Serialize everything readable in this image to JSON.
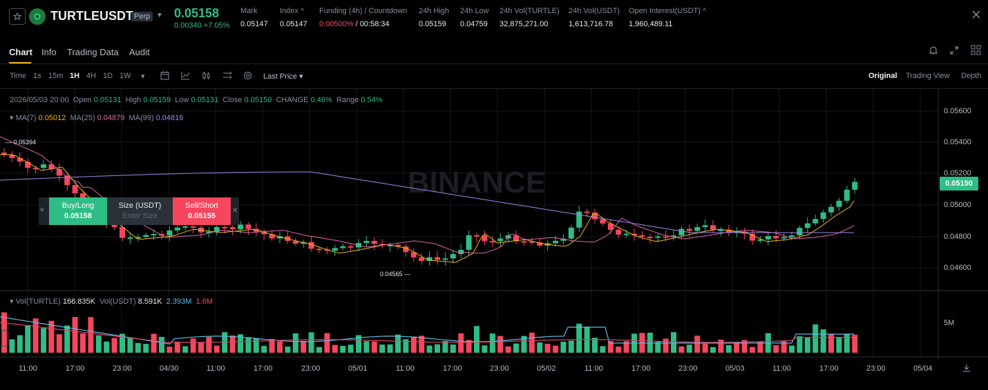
{
  "header": {
    "symbol": "TURTLEUSDT",
    "contract_type": "Perp",
    "last_price": "0.05158",
    "price_change": "0.00340 +7.05%",
    "stats": [
      {
        "label": "Mark",
        "value": "0.05147"
      },
      {
        "label": "Index ^",
        "value": "0.05147"
      },
      {
        "label": "Funding (4h) / Countdown",
        "value_red": "0.00500%",
        "value_rest": " / 00:58:34"
      },
      {
        "label": "24h High",
        "value": "0.05159"
      },
      {
        "label": "24h Low",
        "value": "0.04759"
      },
      {
        "label": "24h Vol(TURTLE)",
        "value": "32,875,271.00"
      },
      {
        "label": "24h Vol(USDT)",
        "value": "1,613,716.78"
      },
      {
        "label": "Open Interest(USDT) ^",
        "value": "1,960,489.11"
      }
    ]
  },
  "tabs": [
    "Chart",
    "Info",
    "Trading Data",
    "Audit"
  ],
  "toolbar": {
    "timeframes": [
      "Time",
      "1s",
      "15m",
      "1H",
      "4H",
      "1D",
      "1W"
    ],
    "active_timeframe": "1H",
    "price_type": "Last Price",
    "views": [
      "Original",
      "Trading View",
      "Depth"
    ],
    "active_view": "Original"
  },
  "ohlc": {
    "date": "2026/05/03 20:00",
    "open_label": "Open",
    "open": "0.05131",
    "high_label": "High",
    "high": "0.05159",
    "low_label": "Low",
    "low": "0.05131",
    "close_label": "Close",
    "close": "0.05150",
    "change_label": "CHANGE",
    "change": "0.46%",
    "range_label": "Range",
    "range": "0.54%"
  },
  "ma": {
    "ma7_label": "MA(7)",
    "ma7": "0.05012",
    "ma25_label": "MA(25)",
    "ma25": "0.04879",
    "ma99_label": "MA(99)",
    "ma99": "0.04816"
  },
  "order_panel": {
    "buy_label": "Buy/Long",
    "buy_price": "0.05158",
    "size_label": "Size (USDT)",
    "size_placeholder": "Enter Size",
    "sell_label": "Sell/Short",
    "sell_price": "0.05155"
  },
  "price_axis": [
    "0.05600",
    "0.05400",
    "0.05200",
    "0.05000",
    "0.04800",
    "0.04600"
  ],
  "current_price_tag": "0.05150",
  "high_marker": "0.05394",
  "low_marker": "0.04565",
  "volume": {
    "vol_turtle_label": "Vol(TURTLE)",
    "vol_turtle": "166.835K",
    "vol_usdt_label": "Vol(USDT)",
    "vol_usdt": "8.591K",
    "ma_a": "2.393M",
    "ma_b": "1.6M",
    "axis_label": "5M"
  },
  "time_axis": [
    "11:00",
    "17:00",
    "23:00",
    "04/30",
    "11:00",
    "17:00",
    "23:00",
    "05/01",
    "11:00",
    "17:00",
    "23:00",
    "05/02",
    "11:00",
    "17:00",
    "23:00",
    "05/03",
    "11:00",
    "17:00",
    "23:00",
    "05/04"
  ],
  "watermark": "BINANCE",
  "colors": {
    "up": "#2ebd85",
    "down": "#f6465d",
    "ma7": "#f0b90b",
    "ma25": "#e066a8",
    "ma99": "#9c8ae6",
    "accent": "#f0b90b"
  }
}
